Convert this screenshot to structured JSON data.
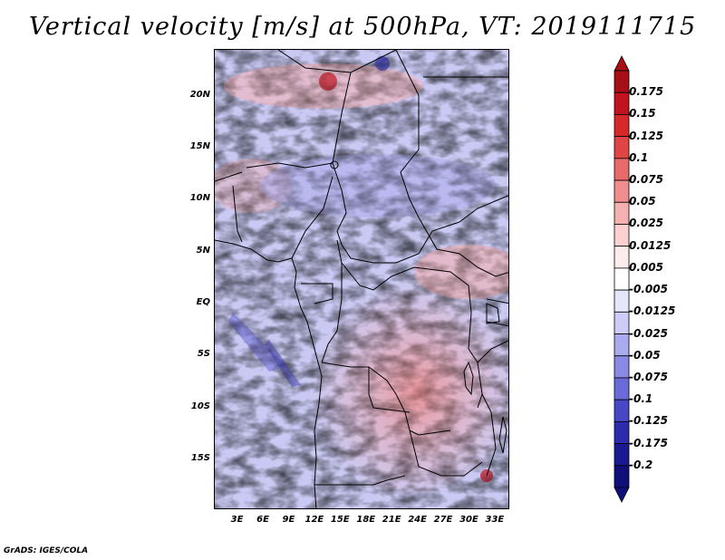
{
  "title": "Vertical velocity [m/s] at 500hPa, VT: 2019111715",
  "footer": "GrADS: IGES/COLA",
  "map": {
    "lat_ticks": [
      {
        "label": "20N",
        "lat": 20
      },
      {
        "label": "15N",
        "lat": 15
      },
      {
        "label": "10N",
        "lat": 10
      },
      {
        "label": "5N",
        "lat": 5
      },
      {
        "label": "EQ",
        "lat": 0
      },
      {
        "label": "5S",
        "lat": -5
      },
      {
        "label": "10S",
        "lat": -10
      },
      {
        "label": "15S",
        "lat": -15
      }
    ],
    "lon_ticks": [
      {
        "label": "3E",
        "lon": 3
      },
      {
        "label": "6E",
        "lon": 6
      },
      {
        "label": "9E",
        "lon": 9
      },
      {
        "label": "12E",
        "lon": 12
      },
      {
        "label": "15E",
        "lon": 15
      },
      {
        "label": "18E",
        "lon": 18
      },
      {
        "label": "21E",
        "lon": 21
      },
      {
        "label": "24E",
        "lon": 24
      },
      {
        "label": "27E",
        "lon": 27
      },
      {
        "label": "30E",
        "lon": 30
      },
      {
        "label": "33E",
        "lon": 33
      }
    ],
    "lon_range": [
      0.3,
      34.7
    ],
    "lat_range": [
      -19.8,
      24.5
    ]
  },
  "colorbar": {
    "labels": [
      "0.175",
      "0.15",
      "0.125",
      "0.1",
      "0.075",
      "0.05",
      "0.025",
      "0.0125",
      "0.005",
      "-0.005",
      "-0.0125",
      "-0.025",
      "-0.05",
      "-0.075",
      "-0.1",
      "-0.125",
      "-0.175",
      "-0.2"
    ],
    "colors": [
      "#a50f15",
      "#c1121f",
      "#d62828",
      "#e04545",
      "#e96a6a",
      "#f08e8e",
      "#f5b0b0",
      "#fad0d0",
      "#fdecec",
      "#ffffff",
      "#e6e6fb",
      "#ccccf6",
      "#aaaaee",
      "#8a8ae4",
      "#6a6ad8",
      "#4848c6",
      "#2c2cad",
      "#1a1a90",
      "#10107a"
    ]
  }
}
